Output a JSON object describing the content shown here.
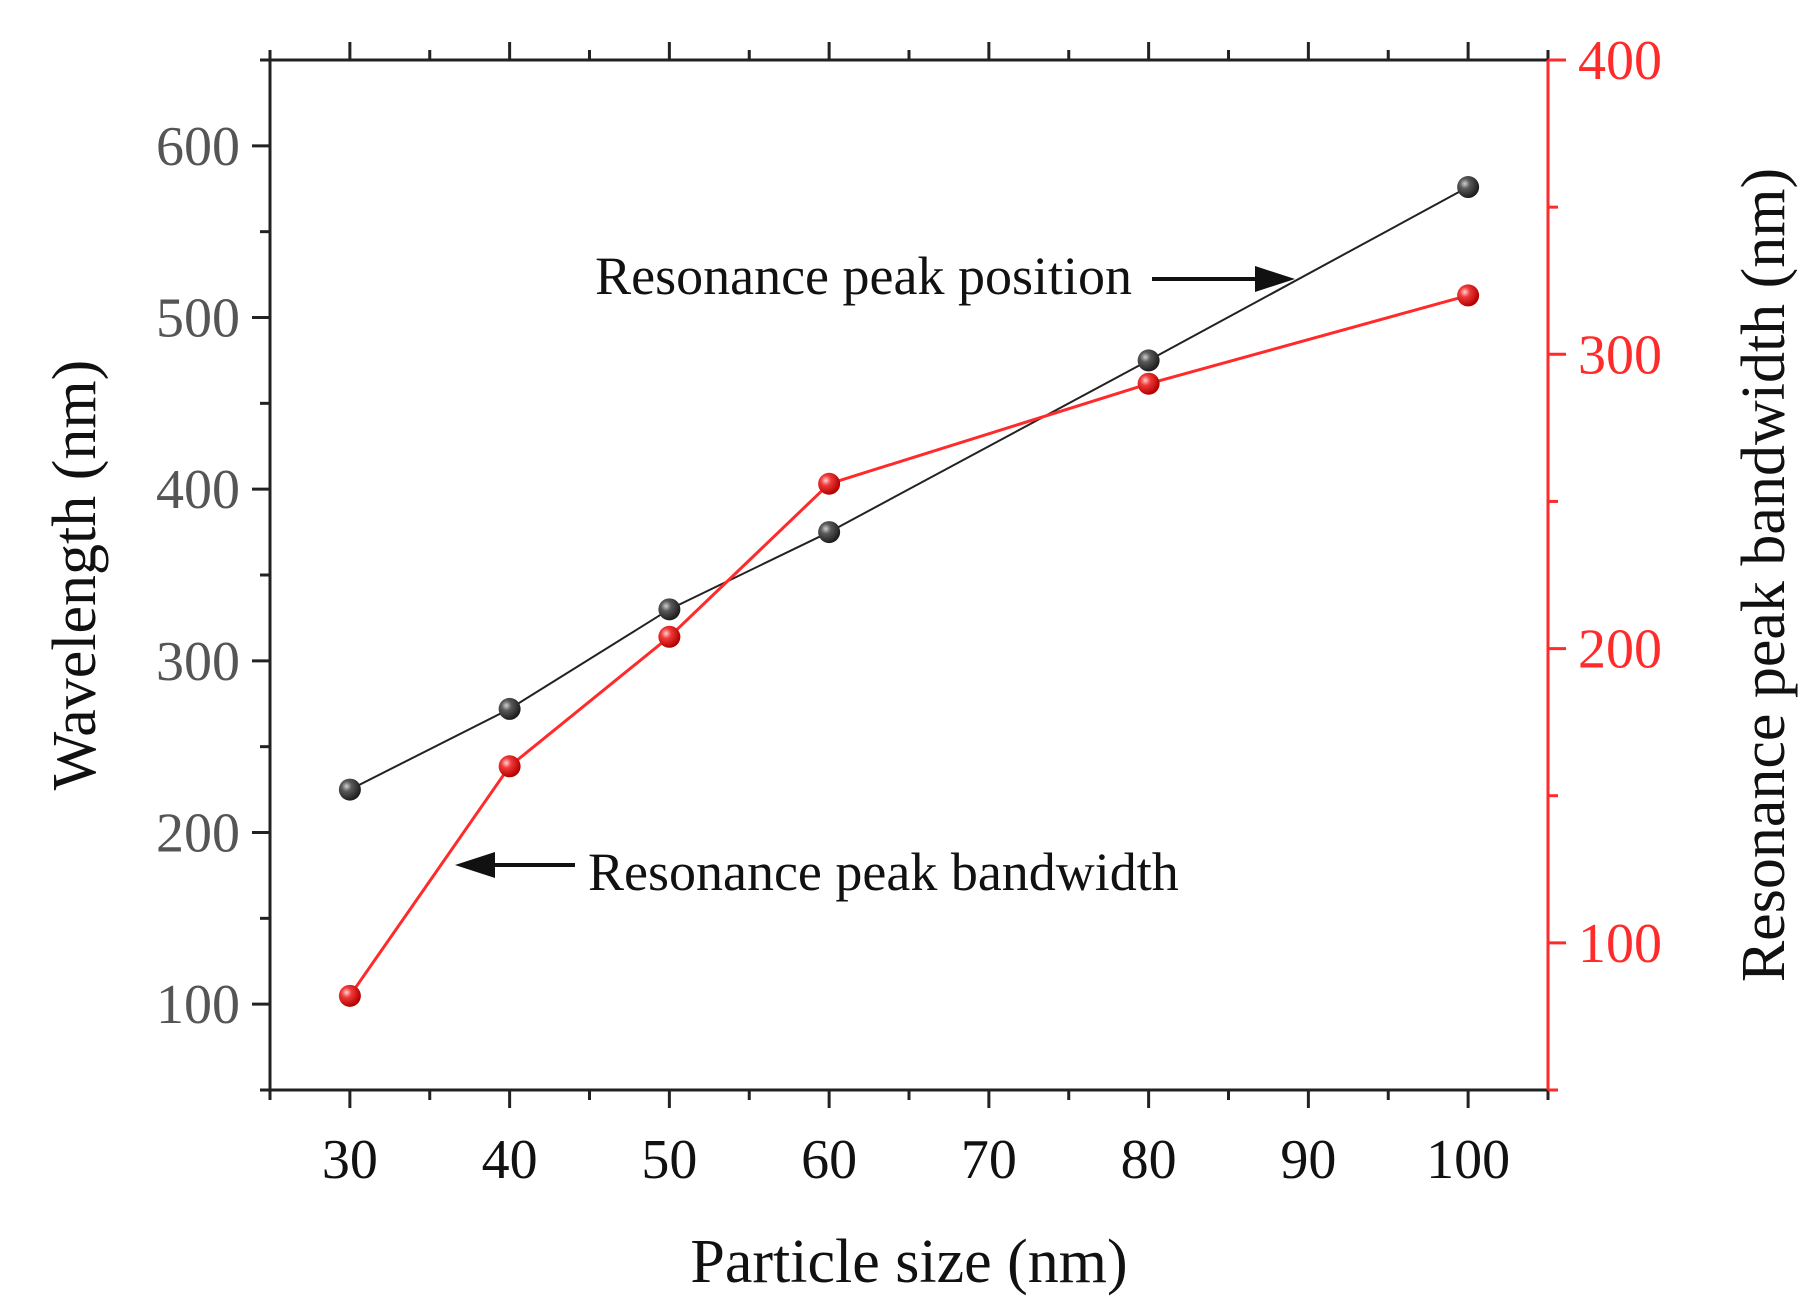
{
  "chart_data": {
    "type": "line",
    "title": "",
    "xlabel": "Particle size (nm)",
    "ylabel_left": "Wavelength (nm)",
    "ylabel_right": "Resonance peak bandwidth (nm)",
    "xlim": [
      25,
      105
    ],
    "ylim_left": [
      50,
      650
    ],
    "ylim_right": [
      50,
      400
    ],
    "x_ticks": [
      30,
      40,
      50,
      60,
      70,
      80,
      90,
      100
    ],
    "x_tick_labels": [
      "30",
      "40",
      "50",
      "60",
      "70",
      "80",
      "90",
      "100"
    ],
    "y_left_ticks": [
      100,
      200,
      300,
      400,
      500,
      600
    ],
    "y_left_tick_labels": [
      "100",
      "200",
      "300",
      "400",
      "500",
      "600"
    ],
    "y_right_ticks": [
      100,
      200,
      300,
      400
    ],
    "y_right_tick_labels": [
      "100",
      "200",
      "300",
      "400"
    ],
    "series": [
      {
        "name": "Resonance peak position",
        "axis": "left",
        "color": "#222222",
        "marker_color": "#3a3a3a",
        "x": [
          30,
          40,
          50,
          60,
          80,
          100
        ],
        "values": [
          225,
          272,
          330,
          375,
          475,
          576
        ]
      },
      {
        "name": "Resonance peak bandwidth",
        "axis": "right",
        "color": "#ff2a2a",
        "marker_color": "#ee2222",
        "x": [
          30,
          40,
          50,
          60,
          80,
          100
        ],
        "values": [
          82,
          160,
          204,
          256,
          290,
          320
        ]
      }
    ],
    "annotations": [
      {
        "text": "Resonance peak position",
        "arrow": "right"
      },
      {
        "text": "Resonance peak bandwidth",
        "arrow": "left"
      }
    ],
    "colors": {
      "left_axis": "#222222",
      "left_tick_label": "#555555",
      "right_axis": "#ff2a2a",
      "x_axis": "#222222"
    }
  }
}
